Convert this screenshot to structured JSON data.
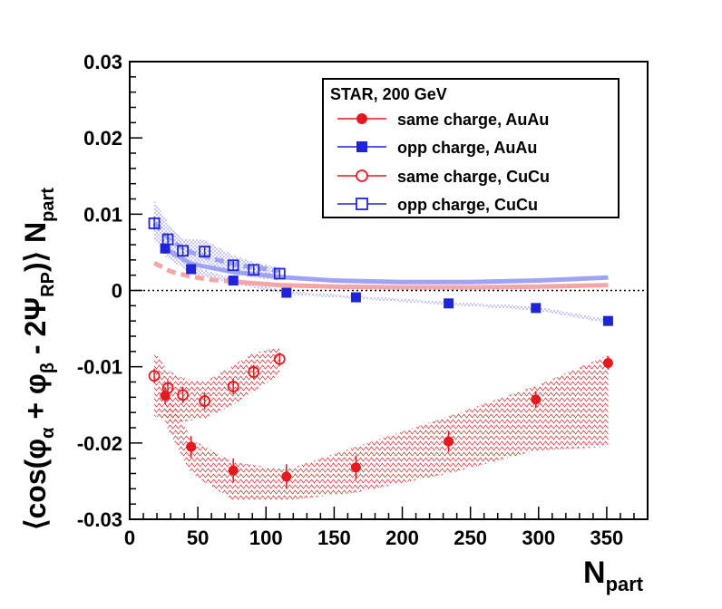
{
  "chart_data": {
    "type": "scatter",
    "title": "",
    "xlabel_main": "N",
    "xlabel_sub": "part",
    "ylabel_parts": [
      "⟨cos(φ",
      "α",
      " + φ",
      "β",
      " - 2Ψ",
      "RP",
      ")⟩ N",
      "part"
    ],
    "xlim": [
      0,
      380
    ],
    "ylim": [
      -0.03,
      0.03
    ],
    "x_ticks": [
      0,
      50,
      100,
      150,
      200,
      250,
      300,
      350
    ],
    "x_tick_labels": [
      "0",
      "50",
      "100",
      "150",
      "200",
      "250",
      "300",
      "350"
    ],
    "y_ticks": [
      -0.03,
      -0.02,
      -0.01,
      0,
      0.01,
      0.02,
      0.03
    ],
    "y_tick_labels": [
      "-0.03",
      "-0.02",
      "-0.01",
      "0",
      "0.01",
      "0.02",
      "0.03"
    ],
    "legend_title": "STAR, 200 GeV",
    "legend_position": "top-right",
    "series": [
      {
        "name": "same charge, AuAu",
        "color": "#e8191e",
        "marker": "filled-circle",
        "x": [
          26,
          45,
          76,
          115,
          166,
          234,
          298,
          351
        ],
        "y": [
          -0.0138,
          -0.0205,
          -0.0236,
          -0.0244,
          -0.0232,
          -0.0198,
          -0.0143,
          -0.0095
        ],
        "band_low": [
          -0.0175,
          -0.024,
          -0.0275,
          -0.0275,
          -0.0265,
          -0.024,
          -0.021,
          -0.0205
        ],
        "band_high": [
          -0.0125,
          -0.0195,
          -0.0225,
          -0.0235,
          -0.0205,
          -0.0165,
          -0.0125,
          -0.0085
        ]
      },
      {
        "name": "opp charge, AuAu",
        "color": "#1f24d8",
        "marker": "filled-square",
        "x": [
          26,
          45,
          76,
          115,
          166,
          234,
          298,
          351
        ],
        "y": [
          0.0055,
          0.0028,
          0.0013,
          -0.0003,
          -0.0009,
          -0.0017,
          -0.0023,
          -0.004
        ],
        "band_low": [
          0.0045,
          0.0022,
          0.0009,
          -0.0005,
          -0.0011,
          -0.0019,
          -0.0026,
          -0.0043
        ],
        "band_high": [
          0.0062,
          0.0032,
          0.0016,
          -0.0001,
          -0.0007,
          -0.0015,
          -0.0021,
          -0.0038
        ]
      },
      {
        "name": "same charge, CuCu",
        "color": "#e8191e",
        "marker": "open-circle",
        "x": [
          18,
          28,
          39,
          55,
          76,
          91,
          110
        ],
        "y": [
          -0.0112,
          -0.0128,
          -0.0137,
          -0.0145,
          -0.0126,
          -0.0107,
          -0.009
        ],
        "band_low": [
          -0.0165,
          -0.017,
          -0.0172,
          -0.0168,
          -0.015,
          -0.0132,
          -0.011
        ],
        "band_high": [
          -0.008,
          -0.0105,
          -0.0115,
          -0.012,
          -0.0098,
          -0.0082,
          -0.0075
        ]
      },
      {
        "name": "opp charge, CuCu",
        "color": "#1f24d8",
        "marker": "open-square",
        "x": [
          18,
          28,
          39,
          55,
          76,
          91,
          110
        ],
        "y": [
          0.0088,
          0.0067,
          0.0052,
          0.0051,
          0.0033,
          0.0027,
          0.0022
        ],
        "band_low": [
          0.0065,
          0.0048,
          0.0038,
          0.0036,
          0.0021,
          0.0017,
          0.0013
        ],
        "band_high": [
          0.0118,
          0.0089,
          0.0068,
          0.0066,
          0.0046,
          0.0037,
          0.003
        ]
      }
    ],
    "model_curves": [
      {
        "name": "same charge model",
        "color": "#f4a6a8",
        "dashed_x": [
          18,
          30,
          45,
          60,
          80
        ],
        "dashed_y": [
          0.0036,
          0.0025,
          0.0018,
          0.0014,
          0.0011
        ],
        "solid_x": [
          80,
          110,
          150,
          200,
          250,
          300,
          351
        ],
        "solid_y": [
          0.0011,
          0.0007,
          0.0005,
          0.0004,
          0.0004,
          0.0005,
          0.0007
        ]
      },
      {
        "name": "opp charge model",
        "color": "#9ea3f5",
        "dashed_x": [
          18,
          30,
          45,
          60,
          80,
          110
        ],
        "dashed_y": [
          0.0088,
          0.0065,
          0.005,
          0.0042,
          0.0033,
          0.0026
        ],
        "solid_x": [
          26,
          45,
          76,
          115,
          150,
          200,
          250,
          300,
          351
        ],
        "solid_y": [
          0.0055,
          0.0035,
          0.0024,
          0.0017,
          0.0013,
          0.0011,
          0.0011,
          0.0013,
          0.0017
        ]
      }
    ]
  }
}
